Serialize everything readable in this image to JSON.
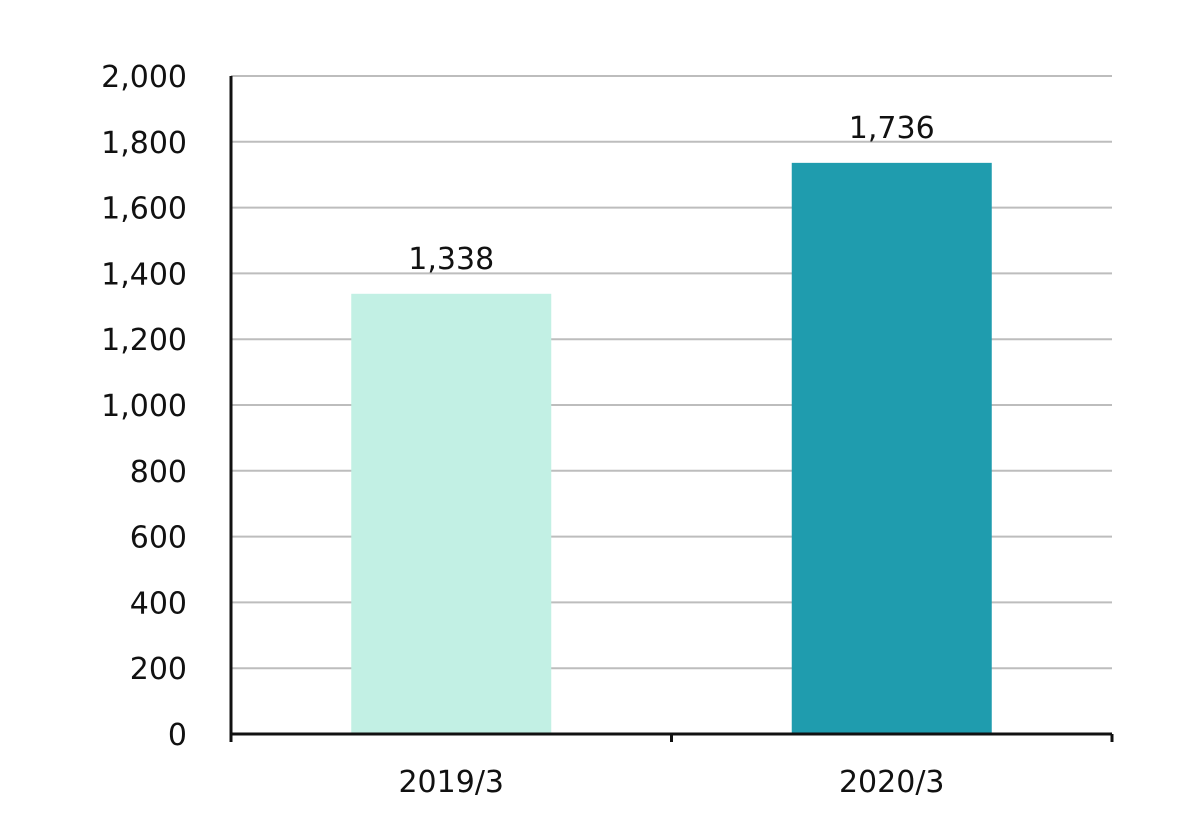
{
  "chart_data": {
    "type": "bar",
    "categories": [
      "2019/3",
      "2020/3"
    ],
    "values": [
      1338,
      1736
    ],
    "value_labels": [
      "1,338",
      "1,736"
    ],
    "bar_colors": [
      "#C2F0E4",
      "#1F9CAE"
    ],
    "title": "",
    "xlabel": "",
    "ylabel": "",
    "ylim": [
      0,
      2000
    ],
    "yticks": [
      0,
      200,
      400,
      600,
      800,
      1000,
      1200,
      1400,
      1600,
      1800,
      2000
    ],
    "ytick_labels": [
      "0",
      "200",
      "400",
      "600",
      "800",
      "1,000",
      "1,200",
      "1,400",
      "1,600",
      "1,800",
      "2,000"
    ],
    "grid": true,
    "grid_color": "#BDBDBD",
    "axis_color": "#111111"
  }
}
